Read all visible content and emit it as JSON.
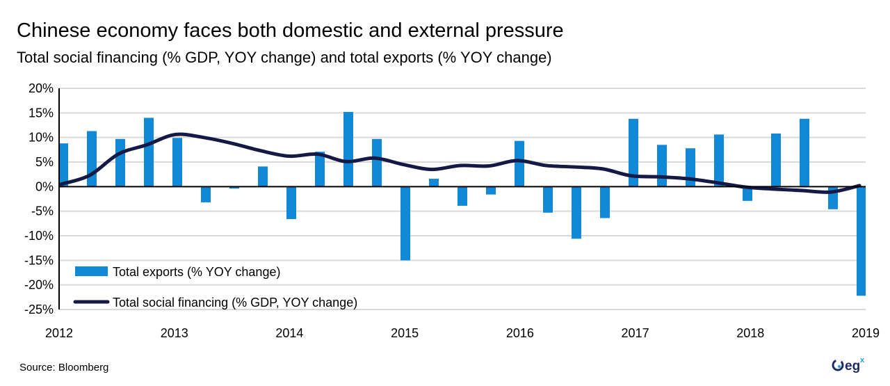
{
  "chart_data": {
    "type": "bar+line",
    "title": "Chinese economy faces both domestic and external pressure",
    "subtitle": "Total social financing (% GDP, YOY change) and total exports (% YOY change)",
    "ylim": [
      -25,
      20
    ],
    "yticks": [
      "20%",
      "15%",
      "10%",
      "5%",
      "0%",
      "-5%",
      "-10%",
      "-15%",
      "-20%",
      "-25%"
    ],
    "ytick_values": [
      20,
      15,
      10,
      5,
      0,
      -5,
      -10,
      -15,
      -20,
      -25
    ],
    "xticks": [
      "2012",
      "2013",
      "2014",
      "2015",
      "2016",
      "2017",
      "2018",
      "2019"
    ],
    "x_frequency": "quarterly, 2012 Q1 to 2019 Q1",
    "grid": true,
    "legend": "bottom-left",
    "series": [
      {
        "name": "Total exports (% YOY change)",
        "kind": "bar",
        "color": "#1289d6",
        "values": [
          8.8,
          11.3,
          9.7,
          14.0,
          9.9,
          -3.2,
          -0.4,
          4.1,
          -6.6,
          7.1,
          15.2,
          9.7,
          -15.0,
          1.6,
          -3.9,
          -1.6,
          9.3,
          -5.3,
          -10.6,
          -6.4,
          13.8,
          8.5,
          7.8,
          10.6,
          -2.9,
          10.8,
          13.8,
          -4.6,
          -22.2
        ]
      },
      {
        "name": "Total social financing (% GDP, YOY change)",
        "kind": "line",
        "color": "#141a45",
        "values": [
          0.5,
          2.3,
          6.6,
          8.5,
          10.6,
          10.0,
          8.8,
          7.3,
          6.2,
          6.6,
          5.1,
          5.8,
          4.5,
          3.5,
          4.3,
          4.2,
          5.3,
          4.3,
          4.0,
          3.6,
          2.2,
          2.0,
          1.6,
          0.8,
          -0.1,
          -0.5,
          -0.8,
          -1.1,
          0.2
        ]
      }
    ]
  },
  "source": "Source: Bloomberg",
  "logo_text": "egx"
}
